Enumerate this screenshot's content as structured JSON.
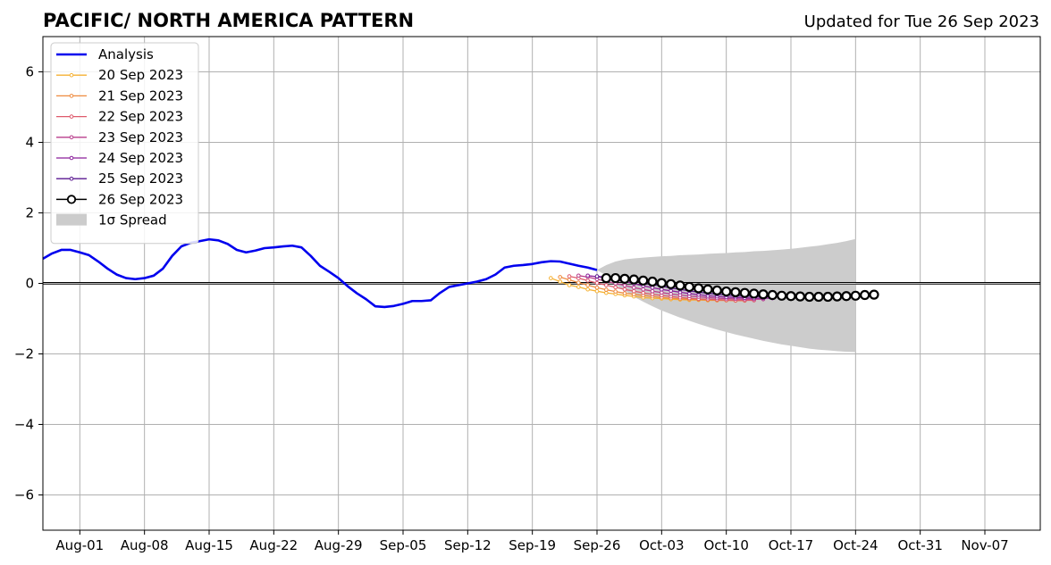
{
  "chart_data": {
    "type": "line",
    "title": "PACIFIC/ NORTH AMERICA PATTERN",
    "subtitle": "Updated for Tue 26 Sep 2023",
    "xlabel": "",
    "ylabel": "",
    "x_range": [
      "2023-07-28",
      "2023-11-13"
    ],
    "ylim": [
      -7,
      7
    ],
    "grid": true,
    "legend_position": "upper-left",
    "x_ticks": [
      {
        "date": "2023-08-01",
        "label": "Aug-01"
      },
      {
        "date": "2023-08-08",
        "label": "Aug-08"
      },
      {
        "date": "2023-08-15",
        "label": "Aug-15"
      },
      {
        "date": "2023-08-22",
        "label": "Aug-22"
      },
      {
        "date": "2023-08-29",
        "label": "Aug-29"
      },
      {
        "date": "2023-09-05",
        "label": "Sep-05"
      },
      {
        "date": "2023-09-12",
        "label": "Sep-12"
      },
      {
        "date": "2023-09-19",
        "label": "Sep-19"
      },
      {
        "date": "2023-09-26",
        "label": "Sep-26"
      },
      {
        "date": "2023-10-03",
        "label": "Oct-03"
      },
      {
        "date": "2023-10-10",
        "label": "Oct-10"
      },
      {
        "date": "2023-10-17",
        "label": "Oct-17"
      },
      {
        "date": "2023-10-24",
        "label": "Oct-24"
      },
      {
        "date": "2023-10-31",
        "label": "Oct-31"
      },
      {
        "date": "2023-11-07",
        "label": "Nov-07"
      }
    ],
    "y_ticks": [
      {
        "value": 6,
        "label": "6"
      },
      {
        "value": 4,
        "label": "4"
      },
      {
        "value": 2,
        "label": "2"
      },
      {
        "value": 0,
        "label": "0"
      },
      {
        "value": -2,
        "label": "−2"
      },
      {
        "value": -4,
        "label": "−4"
      },
      {
        "value": -6,
        "label": "−6"
      }
    ],
    "analysis": {
      "name": "Analysis",
      "color": "#0000ee",
      "start_date": "2023-07-28",
      "values": [
        0.7,
        0.85,
        0.95,
        0.95,
        0.88,
        0.8,
        0.62,
        0.42,
        0.25,
        0.15,
        0.12,
        0.15,
        0.22,
        0.42,
        0.78,
        1.05,
        1.15,
        1.2,
        1.25,
        1.22,
        1.12,
        0.95,
        0.88,
        0.93,
        1.0,
        1.02,
        1.05,
        1.07,
        1.02,
        0.78,
        0.5,
        0.33,
        0.15,
        -0.08,
        -0.28,
        -0.45,
        -0.65,
        -0.67,
        -0.64,
        -0.58,
        -0.5,
        -0.5,
        -0.48,
        -0.27,
        -0.1,
        -0.05,
        0.0,
        0.05,
        0.12,
        0.25,
        0.45,
        0.5,
        0.52,
        0.55,
        0.6,
        0.63,
        0.62,
        0.56,
        0.5,
        0.45,
        0.38
      ]
    },
    "spread": {
      "name": "1σ Spread",
      "color": "#cccccc",
      "start_date": "2023-09-26",
      "upper": [
        0.38,
        0.52,
        0.62,
        0.68,
        0.71,
        0.73,
        0.75,
        0.77,
        0.78,
        0.8,
        0.81,
        0.82,
        0.84,
        0.85,
        0.86,
        0.88,
        0.89,
        0.91,
        0.92,
        0.94,
        0.96,
        0.98,
        1.01,
        1.04,
        1.07,
        1.11,
        1.15,
        1.2,
        1.26
      ],
      "lower": [
        0.38,
        0.22,
        -0.05,
        -0.2,
        -0.38,
        -0.52,
        -0.65,
        -0.77,
        -0.87,
        -0.97,
        -1.06,
        -1.15,
        -1.23,
        -1.31,
        -1.38,
        -1.45,
        -1.51,
        -1.57,
        -1.63,
        -1.68,
        -1.73,
        -1.77,
        -1.81,
        -1.85,
        -1.88,
        -1.9,
        -1.92,
        -1.94,
        -1.95
      ]
    },
    "forecasts": [
      {
        "name": "20 Sep 2023",
        "color": "#f5b133",
        "start_date": "2023-09-21",
        "values": [
          0.15,
          0.05,
          -0.05,
          -0.1,
          -0.17,
          -0.22,
          -0.27,
          -0.3,
          -0.34,
          -0.37,
          -0.4,
          -0.42,
          -0.43,
          -0.45,
          -0.46,
          -0.47,
          -0.47,
          -0.48,
          -0.48,
          -0.48,
          -0.48
        ]
      },
      {
        "name": "21 Sep 2023",
        "color": "#ee8a3e",
        "start_date": "2023-09-22",
        "values": [
          0.18,
          0.1,
          0.02,
          -0.05,
          -0.12,
          -0.18,
          -0.23,
          -0.28,
          -0.31,
          -0.34,
          -0.37,
          -0.4,
          -0.42,
          -0.44,
          -0.45,
          -0.46,
          -0.47,
          -0.48,
          -0.48,
          -0.49,
          -0.49
        ]
      },
      {
        "name": "22 Sep 2023",
        "color": "#de5a6c",
        "start_date": "2023-09-23",
        "values": [
          0.2,
          0.15,
          0.08,
          0.01,
          -0.05,
          -0.11,
          -0.17,
          -0.22,
          -0.27,
          -0.31,
          -0.34,
          -0.37,
          -0.4,
          -0.42,
          -0.44,
          -0.45,
          -0.46,
          -0.47,
          -0.48,
          -0.48,
          -0.48
        ]
      },
      {
        "name": "23 Sep 2023",
        "color": "#b83e8c",
        "start_date": "2023-09-24",
        "values": [
          0.22,
          0.18,
          0.12,
          0.06,
          0.0,
          -0.06,
          -0.12,
          -0.17,
          -0.22,
          -0.26,
          -0.3,
          -0.33,
          -0.36,
          -0.38,
          -0.4,
          -0.42,
          -0.43,
          -0.44,
          -0.45,
          -0.45,
          -0.45
        ]
      },
      {
        "name": "24 Sep 2023",
        "color": "#8a1f9a",
        "start_date": "2023-09-25",
        "values": [
          0.22,
          0.19,
          0.15,
          0.1,
          0.05,
          -0.01,
          -0.07,
          -0.12,
          -0.17,
          -0.21,
          -0.25,
          -0.29,
          -0.32,
          -0.35,
          -0.37,
          -0.39,
          -0.4,
          -0.41,
          -0.42,
          -0.42,
          -0.42
        ]
      },
      {
        "name": "25 Sep 2023",
        "color": "#5a1790",
        "start_date": "2023-09-26",
        "values": [
          0.2,
          0.18,
          0.15,
          0.11,
          0.07,
          0.02,
          -0.03,
          -0.08,
          -0.13,
          -0.17,
          -0.21,
          -0.25,
          -0.28,
          -0.31,
          -0.33,
          -0.35,
          -0.36,
          -0.37,
          -0.38,
          -0.38,
          -0.38
        ]
      },
      {
        "name": "26 Sep 2023",
        "color": "#000000",
        "start_date": "2023-09-27",
        "open_circles": true,
        "values": [
          0.15,
          0.15,
          0.13,
          0.11,
          0.08,
          0.05,
          0.01,
          -0.02,
          -0.06,
          -0.1,
          -0.14,
          -0.17,
          -0.2,
          -0.23,
          -0.25,
          -0.27,
          -0.29,
          -0.31,
          -0.33,
          -0.35,
          -0.36,
          -0.37,
          -0.38,
          -0.38,
          -0.38,
          -0.37,
          -0.36,
          -0.35,
          -0.33,
          -0.32
        ]
      }
    ]
  }
}
